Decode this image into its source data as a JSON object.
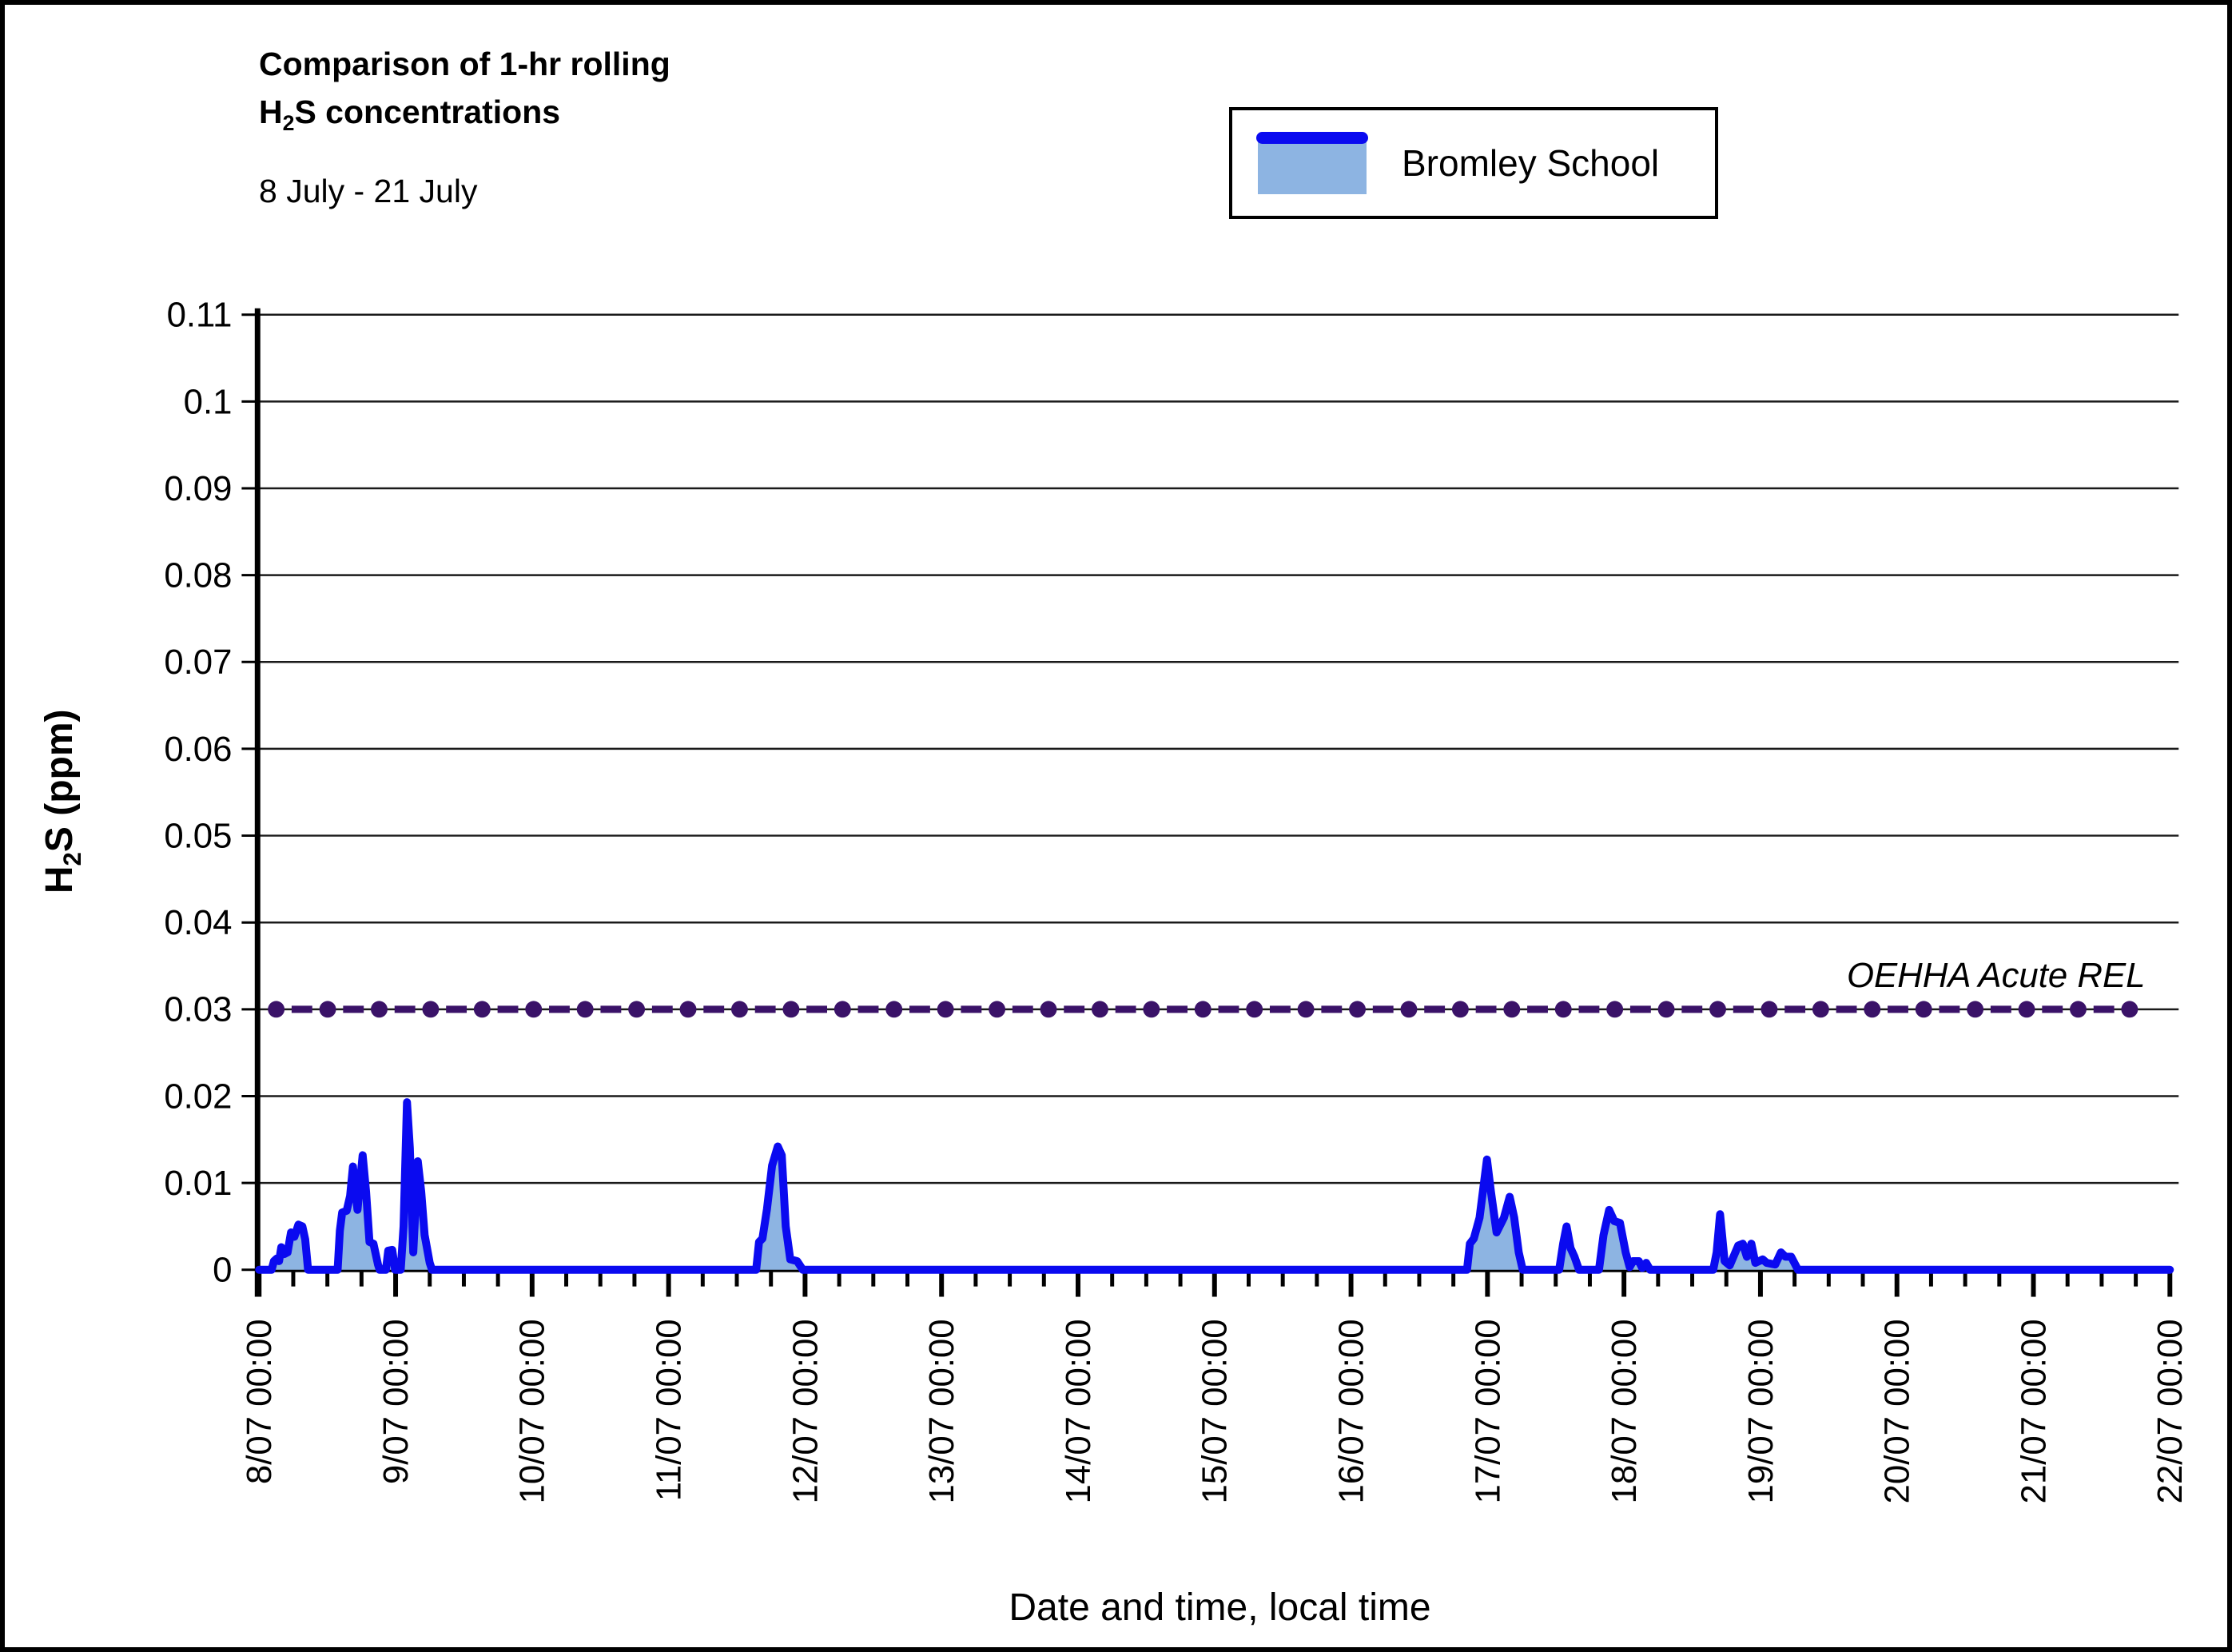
{
  "header": {
    "title_line1": "Comparison of 1-hr rolling",
    "title_line2_prefix": "H",
    "title_line2_sub": "2",
    "title_line2_suffix": "S concentrations",
    "subtitle": "8 July - 21 July",
    "ylabel_prefix": "H",
    "ylabel_sub": "2",
    "ylabel_suffix": "S (ppm)",
    "xlabel": "Date and time, local time"
  },
  "legend": {
    "label": "Bromley School",
    "swatch_fill": "#8DB4E2",
    "swatch_line": "#0A0AF0"
  },
  "chart_data": {
    "type": "area",
    "title": "Comparison of 1-hr rolling H2S concentrations",
    "subtitle": "8 July - 21 July",
    "xlabel": "Date and time, local time",
    "ylabel": "H2S (ppm)",
    "ylim": [
      0,
      0.11
    ],
    "ytick_step": 0.01,
    "grid": true,
    "x_unit": "hours since 8/07 00:00",
    "x_range_hours": [
      0,
      336
    ],
    "xtick_labels": [
      "8/07 00:00",
      "9/07 00:00",
      "10/07 00:00",
      "11/07 00:00",
      "12/07 00:00",
      "13/07 00:00",
      "14/07 00:00",
      "15/07 00:00",
      "16/07 00:00",
      "17/07 00:00",
      "18/07 00:00",
      "19/07 00:00",
      "20/07 00:00",
      "21/07 00:00",
      "22/07 00:00"
    ],
    "major_tick_hours": 24,
    "minor_tick_hours": 6,
    "reference_line": {
      "value": 0.03,
      "label": "OEHHA Acute REL",
      "marker_color": "#3A1268",
      "dash_color": "#3A1268",
      "base_color": "#2b2b2b"
    },
    "series": [
      {
        "name": "Bromley School",
        "line_color": "#0A0AF0",
        "fill_color": "#8DB4E2",
        "points": [
          [
            0,
            0
          ],
          [
            2.2,
            0
          ],
          [
            2.6,
            0.001
          ],
          [
            3.1,
            0.0013
          ],
          [
            3.5,
            0.001
          ],
          [
            3.9,
            0.0026
          ],
          [
            4.4,
            0.0018
          ],
          [
            5.0,
            0.002
          ],
          [
            5.6,
            0.0043
          ],
          [
            6.2,
            0.0038
          ],
          [
            6.9,
            0.0052
          ],
          [
            7.6,
            0.005
          ],
          [
            8.1,
            0.0035
          ],
          [
            8.6,
            0
          ],
          [
            13.8,
            0
          ],
          [
            14.2,
            0.0045
          ],
          [
            14.6,
            0.0066
          ],
          [
            15.4,
            0.0068
          ],
          [
            16.0,
            0.0085
          ],
          [
            16.5,
            0.0119
          ],
          [
            17.3,
            0.0069
          ],
          [
            18.2,
            0.0132
          ],
          [
            18.8,
            0.009
          ],
          [
            19.4,
            0.0032
          ],
          [
            20.1,
            0.003
          ],
          [
            20.9,
            0.0006
          ],
          [
            21.2,
            0
          ],
          [
            22.3,
            0
          ],
          [
            22.7,
            0.0022
          ],
          [
            23.4,
            0.0023
          ],
          [
            23.9,
            0
          ],
          [
            24.9,
            0
          ],
          [
            25.4,
            0.005
          ],
          [
            26.0,
            0.0193
          ],
          [
            26.5,
            0.014
          ],
          [
            27.1,
            0.002
          ],
          [
            27.9,
            0.0125
          ],
          [
            28.5,
            0.009
          ],
          [
            29.1,
            0.004
          ],
          [
            30.0,
            0.0008
          ],
          [
            30.4,
            0
          ],
          [
            87.4,
            0
          ],
          [
            87.9,
            0.0032
          ],
          [
            88.5,
            0.0036
          ],
          [
            89.3,
            0.007
          ],
          [
            90.2,
            0.012
          ],
          [
            91.2,
            0.0142
          ],
          [
            91.9,
            0.0132
          ],
          [
            92.6,
            0.005
          ],
          [
            93.4,
            0.0012
          ],
          [
            94.6,
            0.001
          ],
          [
            95.6,
            0
          ],
          [
            212.4,
            0
          ],
          [
            212.9,
            0.003
          ],
          [
            213.6,
            0.0036
          ],
          [
            214.6,
            0.006
          ],
          [
            215.9,
            0.0127
          ],
          [
            216.6,
            0.009
          ],
          [
            217.6,
            0.0043
          ],
          [
            218.9,
            0.006
          ],
          [
            219.9,
            0.0084
          ],
          [
            220.7,
            0.006
          ],
          [
            221.5,
            0.002
          ],
          [
            222.2,
            0
          ],
          [
            228.6,
            0
          ],
          [
            229.3,
            0.003
          ],
          [
            229.9,
            0.005
          ],
          [
            230.6,
            0.0025
          ],
          [
            231.3,
            0.0015
          ],
          [
            232.1,
            0
          ],
          [
            235.6,
            0
          ],
          [
            236.4,
            0.004
          ],
          [
            237.4,
            0.0069
          ],
          [
            238.3,
            0.0056
          ],
          [
            239.3,
            0.0054
          ],
          [
            240.3,
            0.002
          ],
          [
            241.0,
            0.0003
          ],
          [
            241.6,
            0.001
          ],
          [
            242.6,
            0.001
          ],
          [
            243.2,
            0.0002
          ],
          [
            243.9,
            0.0008
          ],
          [
            244.6,
            0
          ],
          [
            255.7,
            0
          ],
          [
            256.3,
            0.002
          ],
          [
            256.9,
            0.0064
          ],
          [
            257.7,
            0.001
          ],
          [
            258.6,
            0.0005
          ],
          [
            260.1,
            0.0028
          ],
          [
            260.9,
            0.003
          ],
          [
            261.6,
            0.0015
          ],
          [
            262.4,
            0.003
          ],
          [
            263.1,
            0.0008
          ],
          [
            264.4,
            0.0012
          ],
          [
            265.1,
            0.0008
          ],
          [
            266.6,
            0.0006
          ],
          [
            267.6,
            0.002
          ],
          [
            268.4,
            0.0015
          ],
          [
            269.4,
            0.0015
          ],
          [
            270.6,
            0
          ],
          [
            336,
            0
          ]
        ]
      }
    ],
    "legend_position": "top-right"
  },
  "colors": {
    "grid": "#1a1a1a",
    "axis": "#000000",
    "text": "#000000"
  }
}
